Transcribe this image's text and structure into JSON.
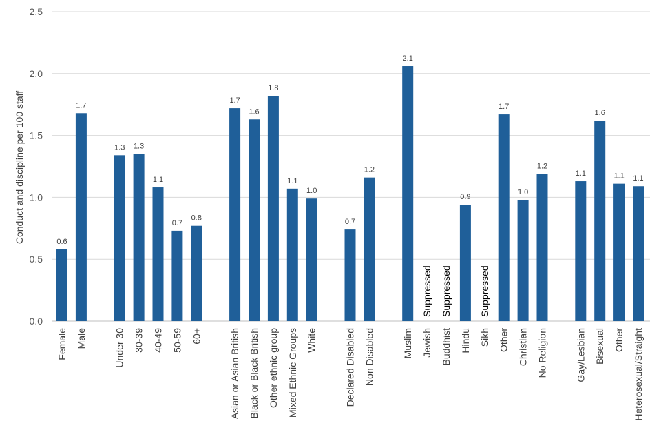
{
  "chart_data": {
    "type": "bar",
    "ylabel": "Conduct and discipline per 100 staff",
    "ylim": [
      0,
      2.5
    ],
    "yticks": [
      "0.0",
      "0.5",
      "1.0",
      "1.5",
      "2.0",
      "2.5"
    ],
    "grid": true,
    "bar_color": "#1f5f99",
    "categories": [
      "Female",
      "Male",
      "",
      "Under 30",
      "30-39",
      "40-49",
      "50-59",
      "60+",
      "",
      "Asian or Asian British",
      "Black or Black British",
      "Other ethnic group",
      "Mixed Ethnic Groups",
      "White",
      "",
      "Declared Disabled",
      "Non Disabled",
      "",
      "Muslim",
      "Jewish",
      "Buddhist",
      "Hindu",
      "Sikh",
      "Other",
      "Christian",
      "No Religion",
      "",
      "Gay/Lesbian",
      "Bisexual",
      "Other",
      "Heterosexual/Straight"
    ],
    "values": [
      0.58,
      1.68,
      null,
      1.34,
      1.35,
      1.08,
      0.73,
      0.77,
      null,
      1.72,
      1.63,
      1.82,
      1.07,
      0.99,
      null,
      0.74,
      1.16,
      null,
      2.06,
      null,
      null,
      0.94,
      null,
      1.67,
      0.98,
      1.19,
      null,
      1.13,
      1.62,
      1.11,
      1.09
    ],
    "data_labels": [
      "0.6",
      "1.7",
      "",
      "1.3",
      "1.3",
      "1.1",
      "0.7",
      "0.8",
      "",
      "1.7",
      "1.6",
      "1.8",
      "1.1",
      "1.0",
      "",
      "0.7",
      "1.2",
      "",
      "2.1",
      "Suppressed",
      "Suppressed",
      "0.9",
      "Suppressed",
      "1.7",
      "1.0",
      "1.2",
      "",
      "1.1",
      "1.6",
      "1.1",
      "1.1"
    ]
  }
}
